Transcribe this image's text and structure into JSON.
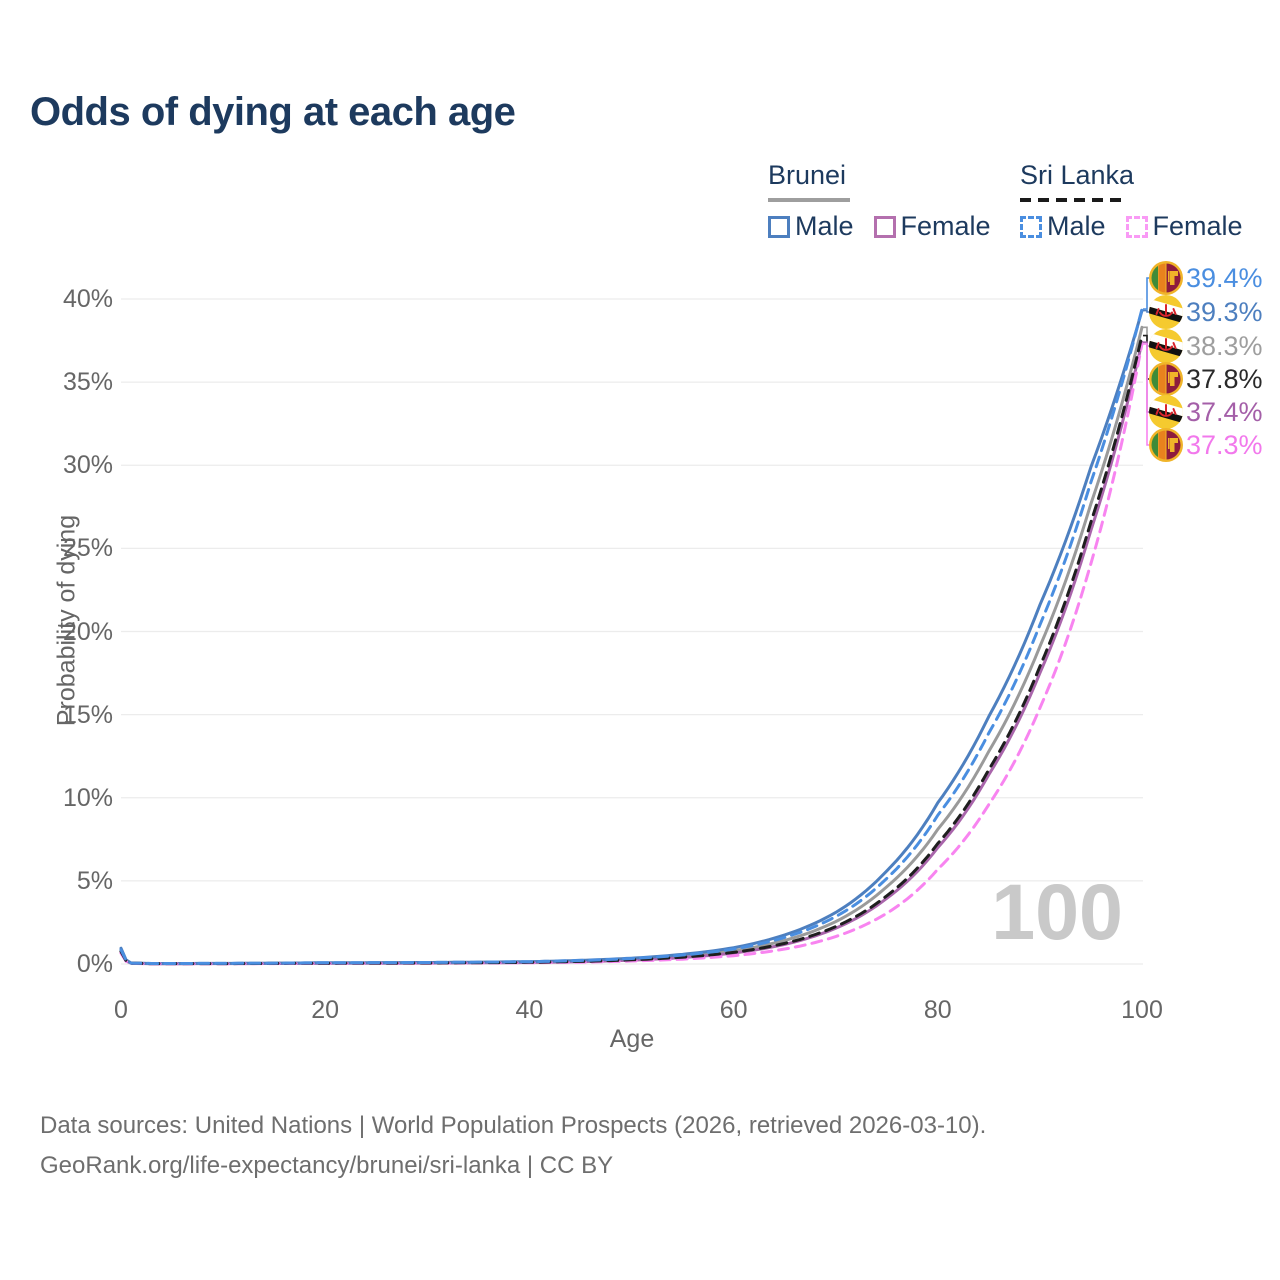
{
  "title": "Odds of dying at each age",
  "legend": {
    "groups": [
      {
        "name": "Brunei",
        "line_style": "solid",
        "underline_color": "#9e9e9e",
        "items": [
          {
            "label": "Male",
            "color": "#4d7fbf"
          },
          {
            "label": "Female",
            "color": "#b470ae"
          }
        ]
      },
      {
        "name": "Sri Lanka",
        "line_style": "dashed",
        "underline_color": "#1a1a1a",
        "items": [
          {
            "label": "Male",
            "color": "#4a8ee0"
          },
          {
            "label": "Female",
            "color": "#f99af5"
          }
        ]
      }
    ]
  },
  "chart_data": {
    "type": "line",
    "title": "Odds of dying at each age",
    "xlabel": "Age",
    "ylabel": "Probability of dying",
    "xlim": [
      0,
      100
    ],
    "ylim_pct": [
      0,
      40
    ],
    "xticks": [
      0,
      20,
      40,
      60,
      80,
      100
    ],
    "yticks": [
      {
        "v": 0,
        "label": "0%"
      },
      {
        "v": 5,
        "label": "5%"
      },
      {
        "v": 10,
        "label": "10%"
      },
      {
        "v": 15,
        "label": "15%"
      },
      {
        "v": 20,
        "label": "20%"
      },
      {
        "v": 25,
        "label": "25%"
      },
      {
        "v": 30,
        "label": "30%"
      },
      {
        "v": 35,
        "label": "35%"
      },
      {
        "v": 40,
        "label": "40%"
      }
    ],
    "grid": true,
    "hover_age_watermark": "100",
    "ages": [
      0,
      1,
      3,
      10,
      20,
      30,
      40,
      45,
      50,
      55,
      60,
      65,
      70,
      75,
      80,
      85,
      90,
      95,
      100
    ],
    "series": [
      {
        "name": "Sri Lanka Male",
        "country": "Sri Lanka",
        "sex": "Male",
        "flag": "lk",
        "dashed": true,
        "color": "#4a8ee0",
        "label_color": "#4a8ee0",
        "end_label": "39.4%",
        "values_pct": [
          0.85,
          0.055,
          0.03,
          0.035,
          0.075,
          0.09,
          0.14,
          0.21,
          0.33,
          0.54,
          0.9,
          1.6,
          2.85,
          5.15,
          8.95,
          13.9,
          20.4,
          29.0,
          39.4
        ]
      },
      {
        "name": "Brunei Male",
        "country": "Brunei",
        "sex": "Male",
        "flag": "bn",
        "dashed": false,
        "color": "#4d7fbf",
        "label_color": "#4d7fbf",
        "end_label": "39.3%",
        "values_pct": [
          0.95,
          0.06,
          0.03,
          0.035,
          0.075,
          0.09,
          0.14,
          0.22,
          0.35,
          0.58,
          0.98,
          1.75,
          3.1,
          5.6,
          9.7,
          14.9,
          21.6,
          29.9,
          39.3
        ]
      },
      {
        "name": "Brunei Both",
        "country": "Brunei",
        "sex": "Both",
        "flag": "bn",
        "dashed": false,
        "color": "#9a9a9a",
        "label_color": "#9e9e9e",
        "end_label": "38.3%",
        "values_pct": [
          0.85,
          0.05,
          0.025,
          0.03,
          0.055,
          0.07,
          0.11,
          0.17,
          0.28,
          0.47,
          0.8,
          1.42,
          2.55,
          4.65,
          8.1,
          12.8,
          19.1,
          27.7,
          38.3
        ]
      },
      {
        "name": "Sri Lanka Both",
        "country": "Sri Lanka",
        "sex": "Both",
        "flag": "lk",
        "dashed": true,
        "color": "#1f1f1f",
        "label_color": "#2a2a2a",
        "end_label": "37.8%",
        "values_pct": [
          0.75,
          0.05,
          0.022,
          0.025,
          0.05,
          0.06,
          0.1,
          0.155,
          0.25,
          0.41,
          0.7,
          1.24,
          2.25,
          4.1,
          7.25,
          11.7,
          17.9,
          26.6,
          37.8
        ]
      },
      {
        "name": "Brunei Female",
        "country": "Brunei",
        "sex": "Female",
        "flag": "bn",
        "dashed": false,
        "color": "#a965ab",
        "label_color": "#a45fa8",
        "end_label": "37.4%",
        "values_pct": [
          0.75,
          0.045,
          0.02,
          0.022,
          0.04,
          0.055,
          0.09,
          0.14,
          0.23,
          0.39,
          0.66,
          1.18,
          2.15,
          3.95,
          7.0,
          11.4,
          17.5,
          26.1,
          37.4
        ]
      },
      {
        "name": "Sri Lanka Female",
        "country": "Sri Lanka",
        "sex": "Female",
        "flag": "lk",
        "dashed": true,
        "color": "#f884f0",
        "label_color": "#f278ec",
        "end_label": "37.3%",
        "values_pct": [
          0.65,
          0.04,
          0.018,
          0.02,
          0.035,
          0.05,
          0.075,
          0.11,
          0.18,
          0.29,
          0.5,
          0.9,
          1.65,
          3.05,
          5.7,
          9.6,
          15.4,
          24.1,
          37.3
        ]
      }
    ],
    "legend_position": "top-right"
  },
  "footer": {
    "line1": "Data sources: United Nations | World Population Prospects (2026, retrieved 2026-03-10).",
    "line2": "GeoRank.org/life-expectancy/brunei/sri-lanka | CC BY"
  }
}
